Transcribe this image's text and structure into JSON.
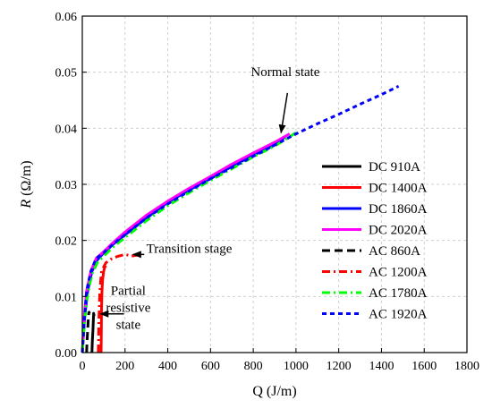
{
  "chart_data": {
    "type": "line",
    "title": "",
    "xlabel": "Q (J/m)",
    "ylabel_var": "R",
    "ylabel_unit": " (Ω/m)",
    "xlim": [
      0,
      1800
    ],
    "ylim": [
      0,
      0.06
    ],
    "x_ticks": [
      0,
      200,
      400,
      600,
      800,
      1000,
      1200,
      1400,
      1600,
      1800
    ],
    "y_ticks": [
      "0.00",
      "0.01",
      "0.02",
      "0.03",
      "0.04",
      "0.05",
      "0.06"
    ],
    "y_tick_values": [
      0,
      0.01,
      0.02,
      0.03,
      0.04,
      0.05,
      0.06
    ],
    "grid": true,
    "legend_position": "right",
    "series": [
      {
        "name": "DC 910A",
        "color": "#000000",
        "dash": "solid",
        "x": [
          45,
          47,
          50,
          52,
          53,
          54,
          55
        ],
        "y": [
          0,
          0.002,
          0.004,
          0.006,
          0.007,
          0.0068,
          0.0065
        ]
      },
      {
        "name": "DC 1400A",
        "color": "#ff0000",
        "dash": "solid",
        "x": [
          88,
          89,
          90,
          92,
          95,
          100,
          105,
          110
        ],
        "y": [
          0,
          0.004,
          0.008,
          0.011,
          0.013,
          0.0145,
          0.0152,
          0.0155
        ]
      },
      {
        "name": "DC 1860A",
        "color": "#0000ff",
        "dash": "solid",
        "x": [
          0,
          10,
          25,
          45,
          70,
          100,
          150,
          200,
          300,
          400,
          500,
          600,
          700,
          800,
          900,
          950
        ],
        "y": [
          0,
          0.006,
          0.011,
          0.0145,
          0.0165,
          0.0178,
          0.0195,
          0.021,
          0.024,
          0.0268,
          0.029,
          0.031,
          0.0332,
          0.0352,
          0.037,
          0.0385
        ]
      },
      {
        "name": "DC 2020A",
        "color": "#ff00ff",
        "dash": "solid",
        "x": [
          0,
          8,
          20,
          40,
          65,
          100,
          150,
          200,
          300,
          400,
          500,
          600,
          700,
          800,
          900,
          970
        ],
        "y": [
          0,
          0.006,
          0.011,
          0.0145,
          0.0168,
          0.018,
          0.0198,
          0.0215,
          0.0245,
          0.027,
          0.0293,
          0.0314,
          0.0336,
          0.0356,
          0.0375,
          0.039
        ]
      },
      {
        "name": "AC 860A",
        "color": "#000000",
        "dash": "dash",
        "x": [
          20,
          22,
          25,
          28,
          30,
          32,
          35
        ],
        "y": [
          0,
          0.002,
          0.004,
          0.006,
          0.007,
          0.0072,
          0.007
        ]
      },
      {
        "name": "AC 1200A",
        "color": "#ff0000",
        "dash": "dashdot",
        "x": [
          75,
          78,
          82,
          90,
          110,
          140,
          170,
          200,
          230,
          260,
          280
        ],
        "y": [
          0,
          0.006,
          0.011,
          0.0145,
          0.016,
          0.0168,
          0.0172,
          0.0175,
          0.0172,
          0.0174,
          0.0175
        ]
      },
      {
        "name": "AC 1780A",
        "color": "#00ff00",
        "dash": "dashdot",
        "x": [
          0,
          10,
          25,
          45,
          70,
          100,
          150,
          200,
          300,
          400,
          500,
          600,
          700,
          800,
          900,
          1000
        ],
        "y": [
          0,
          0.0055,
          0.0105,
          0.014,
          0.016,
          0.0172,
          0.019,
          0.0205,
          0.0235,
          0.0262,
          0.0285,
          0.0307,
          0.0328,
          0.0349,
          0.0368,
          0.0392
        ]
      },
      {
        "name": "AC 1920A",
        "color": "#0000ff",
        "dash": "dot",
        "x": [
          0,
          10,
          20,
          40,
          65,
          100,
          150,
          200,
          300,
          400,
          500,
          600,
          700,
          800,
          900,
          1000,
          1100,
          1200,
          1300,
          1400,
          1480
        ],
        "y": [
          0,
          0.006,
          0.011,
          0.0145,
          0.0168,
          0.0178,
          0.0195,
          0.021,
          0.024,
          0.0265,
          0.0288,
          0.031,
          0.033,
          0.035,
          0.037,
          0.039,
          0.0408,
          0.0425,
          0.0443,
          0.046,
          0.0475
        ]
      }
    ],
    "annotations": [
      {
        "id": "normal",
        "lines": [
          "Normal state"
        ],
        "text_q": 950,
        "text_r": 0.0493,
        "arrow_from_q": 960,
        "arrow_from_r": 0.0463,
        "arrow_to_q": 930,
        "arrow_to_r": 0.0392,
        "anchor": "middle"
      },
      {
        "id": "transition",
        "lines": [
          "Transition stage"
        ],
        "text_q": 300,
        "text_r": 0.0178,
        "arrow_from_q": 290,
        "arrow_from_r": 0.0175,
        "arrow_to_q": 238,
        "arrow_to_r": 0.0175,
        "anchor": "start"
      },
      {
        "id": "partial",
        "lines": [
          "Partial",
          "resistive",
          "state"
        ],
        "text_q": 215,
        "text_r": 0.0103,
        "arrow_from_q": 195,
        "arrow_from_r": 0.0069,
        "arrow_to_q": 85,
        "arrow_to_r": 0.0069,
        "anchor": "middle"
      }
    ]
  }
}
